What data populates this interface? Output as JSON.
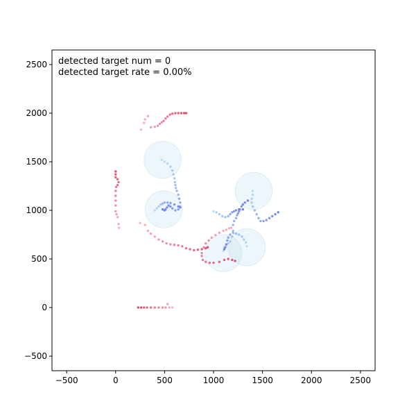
{
  "chart_data": {
    "type": "scatter",
    "xlim": [
      -650,
      2650
    ],
    "ylim": [
      -650,
      2650
    ],
    "x_ticks": [
      -500,
      0,
      500,
      1000,
      1500,
      2000,
      2500
    ],
    "y_ticks": [
      -500,
      0,
      500,
      1000,
      1500,
      2000,
      2500
    ],
    "grid": false,
    "annotations": [
      "detected target num = 0",
      "detected target rate = 0.00%"
    ],
    "colors": {
      "target_track_light": "#f7b6c8",
      "target_track_dark": "#e0506e",
      "sensor_track_light": "#b8dcf5",
      "sensor_track_dark": "#6d83e8",
      "sensor_coverage": "#add8e6"
    },
    "sensor_coverage_circles": [
      {
        "cx": 480,
        "cy": 1520,
        "r": 190
      },
      {
        "cx": 490,
        "cy": 1010,
        "r": 190
      },
      {
        "cx": 1410,
        "cy": 1200,
        "r": 190
      },
      {
        "cx": 1340,
        "cy": 620,
        "r": 190
      },
      {
        "cx": 1100,
        "cy": 560,
        "r": 190
      }
    ],
    "target_tracks": [
      {
        "points": [
          [
            260,
            1830
          ],
          [
            290,
            1900
          ],
          [
            300,
            1935
          ],
          [
            330,
            1970
          ],
          [
            360,
            1855
          ],
          [
            400,
            1860
          ],
          [
            430,
            1870
          ],
          [
            450,
            1890
          ],
          [
            470,
            1905
          ],
          [
            490,
            1920
          ],
          [
            510,
            1945
          ],
          [
            530,
            1965
          ],
          [
            555,
            1985
          ],
          [
            580,
            1995
          ],
          [
            610,
            2000
          ],
          [
            640,
            2000
          ],
          [
            670,
            2000
          ],
          [
            700,
            2000
          ],
          [
            720,
            2000
          ]
        ]
      },
      {
        "points": [
          [
            35,
            820
          ],
          [
            30,
            860
          ],
          [
            20,
            930
          ],
          [
            10,
            960
          ],
          [
            0,
            990
          ],
          [
            0,
            1050
          ],
          [
            0,
            1100
          ],
          [
            0,
            1150
          ],
          [
            0,
            1200
          ],
          [
            5,
            1240
          ],
          [
            20,
            1260
          ],
          [
            30,
            1290
          ],
          [
            20,
            1320
          ],
          [
            0,
            1340
          ],
          [
            0,
            1370
          ],
          [
            0,
            1400
          ]
        ]
      },
      {
        "points": [
          [
            250,
            870
          ],
          [
            300,
            850
          ],
          [
            330,
            790
          ],
          [
            360,
            760
          ],
          [
            400,
            730
          ],
          [
            440,
            700
          ],
          [
            480,
            680
          ],
          [
            520,
            660
          ],
          [
            560,
            650
          ],
          [
            600,
            645
          ],
          [
            640,
            640
          ],
          [
            680,
            630
          ],
          [
            720,
            610
          ],
          [
            760,
            600
          ],
          [
            800,
            590
          ],
          [
            840,
            595
          ],
          [
            880,
            600
          ],
          [
            920,
            610
          ],
          [
            940,
            620
          ]
        ]
      },
      {
        "points": [
          [
            1180,
            820
          ],
          [
            1160,
            815
          ],
          [
            1130,
            800
          ],
          [
            1100,
            790
          ],
          [
            1060,
            770
          ],
          [
            1020,
            745
          ],
          [
            980,
            720
          ],
          [
            950,
            690
          ],
          [
            920,
            660
          ],
          [
            900,
            620
          ],
          [
            880,
            560
          ],
          [
            880,
            530
          ],
          [
            890,
            490
          ],
          [
            920,
            470
          ],
          [
            960,
            460
          ],
          [
            1000,
            460
          ],
          [
            1060,
            470
          ],
          [
            1110,
            490
          ],
          [
            1150,
            500
          ],
          [
            1190,
            490
          ],
          [
            1220,
            480
          ]
        ]
      },
      {
        "points": [
          [
            580,
            0
          ],
          [
            550,
            0
          ],
          [
            530,
            35
          ],
          [
            510,
            0
          ],
          [
            480,
            0
          ],
          [
            440,
            0
          ],
          [
            400,
            0
          ],
          [
            360,
            0
          ],
          [
            320,
            0
          ],
          [
            290,
            0
          ],
          [
            260,
            0
          ],
          [
            230,
            0
          ]
        ]
      }
    ],
    "sensor_tracks": [
      {
        "points": [
          [
            470,
            1520
          ],
          [
            500,
            1500
          ],
          [
            530,
            1480
          ],
          [
            560,
            1450
          ],
          [
            580,
            1410
          ],
          [
            590,
            1370
          ],
          [
            600,
            1330
          ],
          [
            605,
            1290
          ],
          [
            610,
            1260
          ],
          [
            615,
            1230
          ],
          [
            625,
            1200
          ],
          [
            640,
            1160
          ],
          [
            650,
            1120
          ],
          [
            660,
            1080
          ],
          [
            655,
            1040
          ],
          [
            640,
            1010
          ],
          [
            610,
            1000
          ],
          [
            580,
            1020
          ],
          [
            560,
            1040
          ],
          [
            540,
            1050
          ],
          [
            525,
            1030
          ],
          [
            510,
            1010
          ],
          [
            500,
            1000
          ],
          [
            480,
            1010
          ]
        ]
      },
      {
        "points": [
          [
            400,
            1000
          ],
          [
            420,
            1020
          ],
          [
            440,
            1040
          ],
          [
            460,
            1060
          ],
          [
            480,
            1070
          ],
          [
            500,
            1080
          ],
          [
            530,
            1080
          ],
          [
            560,
            1075
          ],
          [
            600,
            1060
          ],
          [
            640,
            1040
          ],
          [
            660,
            1030
          ]
        ]
      },
      {
        "points": [
          [
            1100,
            580
          ],
          [
            1110,
            620
          ],
          [
            1130,
            640
          ],
          [
            1150,
            660
          ],
          [
            1170,
            680
          ],
          [
            1190,
            730
          ],
          [
            1200,
            790
          ],
          [
            1200,
            850
          ],
          [
            1210,
            890
          ],
          [
            1230,
            920
          ],
          [
            1240,
            950
          ],
          [
            1250,
            970
          ],
          [
            1260,
            990
          ],
          [
            1270,
            1010
          ],
          [
            1285,
            1040
          ],
          [
            1300,
            1060
          ],
          [
            1320,
            1080
          ],
          [
            1350,
            1100
          ]
        ]
      },
      {
        "points": [
          [
            1000,
            990
          ],
          [
            1030,
            980
          ],
          [
            1060,
            960
          ],
          [
            1090,
            940
          ],
          [
            1120,
            930
          ],
          [
            1150,
            940
          ],
          [
            1170,
            960
          ],
          [
            1190,
            980
          ],
          [
            1210,
            990
          ],
          [
            1230,
            1000
          ],
          [
            1260,
            1010
          ],
          [
            1300,
            1010
          ]
        ]
      },
      {
        "points": [
          [
            1400,
            1200
          ],
          [
            1400,
            1160
          ],
          [
            1390,
            1120
          ],
          [
            1390,
            1080
          ],
          [
            1400,
            1040
          ],
          [
            1420,
            1000
          ],
          [
            1440,
            960
          ],
          [
            1460,
            920
          ],
          [
            1480,
            890
          ],
          [
            1510,
            890
          ],
          [
            1540,
            900
          ],
          [
            1570,
            920
          ],
          [
            1600,
            940
          ],
          [
            1630,
            960
          ],
          [
            1660,
            980
          ]
        ]
      },
      {
        "points": [
          [
            1340,
            630
          ],
          [
            1330,
            670
          ],
          [
            1310,
            700
          ],
          [
            1290,
            730
          ],
          [
            1260,
            750
          ],
          [
            1230,
            760
          ],
          [
            1200,
            770
          ],
          [
            1170,
            750
          ],
          [
            1150,
            720
          ],
          [
            1140,
            690
          ],
          [
            1130,
            650
          ],
          [
            1120,
            620
          ],
          [
            1110,
            600
          ]
        ]
      }
    ]
  }
}
